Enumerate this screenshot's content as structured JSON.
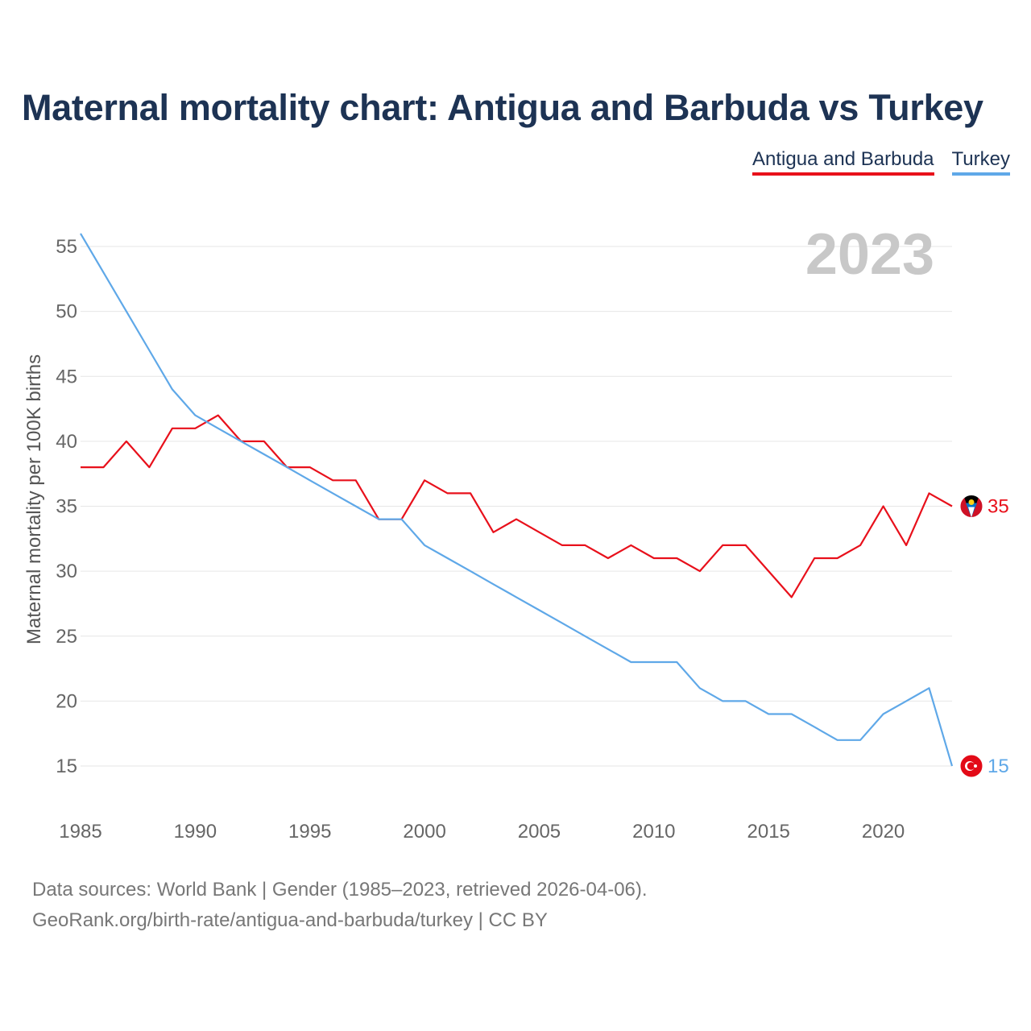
{
  "title": "Maternal mortality chart: Antigua and Barbuda vs Turkey",
  "legend": [
    {
      "name": "Antigua and Barbuda",
      "color": "#e8101b"
    },
    {
      "name": "Turkey",
      "color": "#5fa8e8"
    }
  ],
  "source": {
    "line1": "Data sources: World Bank | Gender (1985–2023, retrieved 2026-04-06).",
    "line2": "GeoRank.org/birth-rate/antigua-and-barbuda/turkey | CC BY"
  },
  "chart_data": {
    "type": "line",
    "year_label": "2023",
    "ylabel": "Maternal mortality per 100K births",
    "xlabel": "",
    "xlim": [
      1985,
      2023
    ],
    "ylim": [
      12,
      56
    ],
    "x_ticks": [
      1985,
      1990,
      1995,
      2000,
      2005,
      2010,
      2015,
      2020
    ],
    "y_ticks": [
      15,
      20,
      25,
      30,
      35,
      40,
      45,
      50,
      55
    ],
    "grid": true,
    "x": [
      1985,
      1986,
      1987,
      1988,
      1989,
      1990,
      1991,
      1992,
      1993,
      1994,
      1995,
      1996,
      1997,
      1998,
      1999,
      2000,
      2001,
      2002,
      2003,
      2004,
      2005,
      2006,
      2007,
      2008,
      2009,
      2010,
      2011,
      2012,
      2013,
      2014,
      2015,
      2016,
      2017,
      2018,
      2019,
      2020,
      2021,
      2022,
      2023
    ],
    "series": [
      {
        "name": "Antigua and Barbuda",
        "color": "#e8101b",
        "end_label": "35",
        "flag_icon": "antigua-and-barbuda-flag-icon",
        "values": [
          38,
          38,
          40,
          38,
          41,
          41,
          42,
          40,
          40,
          38,
          38,
          37,
          37,
          34,
          34,
          37,
          36,
          36,
          33,
          34,
          33,
          32,
          32,
          31,
          32,
          31,
          31,
          30,
          32,
          32,
          30,
          28,
          31,
          31,
          32,
          35,
          32,
          36,
          35
        ]
      },
      {
        "name": "Turkey",
        "color": "#5fa8e8",
        "end_label": "15",
        "flag_icon": "turkey-flag-icon",
        "values": [
          56,
          53,
          50,
          47,
          44,
          42,
          41,
          40,
          39,
          38,
          37,
          36,
          35,
          34,
          34,
          32,
          31,
          30,
          29,
          28,
          27,
          26,
          25,
          24,
          23,
          23,
          23,
          21,
          20,
          20,
          19,
          19,
          18,
          17,
          17,
          19,
          20,
          21,
          15
        ]
      }
    ]
  }
}
